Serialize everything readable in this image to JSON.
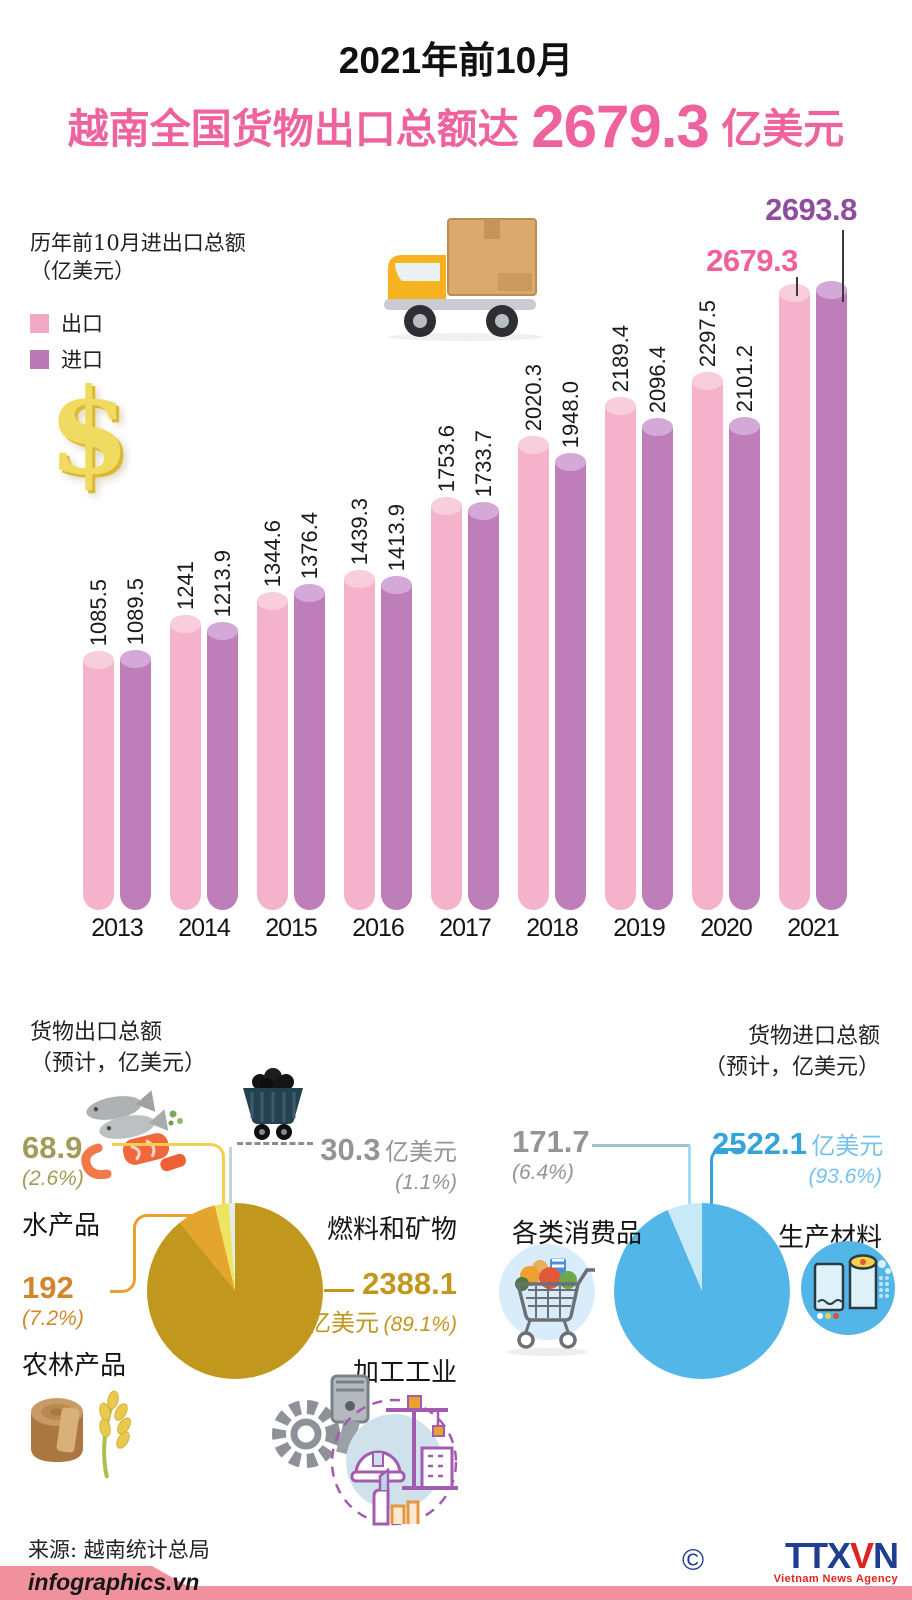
{
  "header": {
    "date_line": "2021年前10月",
    "headline_prefix": "越南全国货物出口总额达",
    "headline_value": "2679.3",
    "headline_suffix": "亿美元"
  },
  "chart_data": [
    {
      "type": "bar",
      "title": "历年前10月进出口总额",
      "unit": "（亿美元）",
      "legend_position": "top-left",
      "categories": [
        "2013",
        "2014",
        "2015",
        "2016",
        "2017",
        "2018",
        "2019",
        "2020",
        "2021"
      ],
      "series": [
        {
          "name": "出口",
          "color": "#F5B3CB",
          "top_color": "#F8CDDC",
          "highlight_color": "#F0609B",
          "values": [
            1085.5,
            1241,
            1344.6,
            1439.3,
            1753.6,
            2020.3,
            2189.4,
            2297.5,
            2679.3
          ],
          "labels": [
            "1085.5",
            "1241",
            "1344.6",
            "1439.3",
            "1753.6",
            "2020.3",
            "2189.4",
            "2297.5",
            "2679.3"
          ]
        },
        {
          "name": "进口",
          "color": "#BE7EB9",
          "top_color": "#D4A9D8",
          "highlight_color": "#8F4DA0",
          "values": [
            1089.5,
            1213.9,
            1376.4,
            1413.9,
            1733.7,
            1948.0,
            2096.4,
            2101.2,
            2693.8
          ],
          "labels": [
            "1089.5",
            "1213.9",
            "1376.4",
            "1413.9",
            "1733.7",
            "1948.0",
            "2096.4",
            "2101.2",
            "2693.8"
          ]
        }
      ],
      "ylim": [
        0,
        2800
      ],
      "grid": false
    },
    {
      "type": "pie",
      "title": "货物出口总额",
      "subtitle": "（预计，亿美元）",
      "slices": [
        {
          "label": "加工工业",
          "value": 2388.1,
          "value_label": "2388.1",
          "unit": "亿美元",
          "pct": 89.1,
          "pct_label": "(89.1%)",
          "color": "#C2971D"
        },
        {
          "label": "农林产品",
          "value": 192,
          "value_label": "192",
          "pct": 7.2,
          "pct_label": "(7.2%)",
          "color": "#E3A52D"
        },
        {
          "label": "水产品",
          "value": 68.9,
          "value_label": "68.9",
          "pct": 2.6,
          "pct_label": "(2.6%)",
          "color": "#EDE464"
        },
        {
          "label": "燃料和矿物",
          "value": 30.3,
          "value_label": "30.3",
          "unit": "亿美元",
          "pct": 1.1,
          "pct_label": "(1.1%)",
          "color": "#E2EEEC"
        }
      ]
    },
    {
      "type": "pie",
      "title": "货物进口总额",
      "subtitle": "（预计，亿美元）",
      "slices": [
        {
          "label": "生产材料",
          "value": 2522.1,
          "value_label": "2522.1",
          "unit": "亿美元",
          "pct": 93.6,
          "pct_label": "(93.6%)",
          "color": "#52B7E8"
        },
        {
          "label": "各类消费品",
          "value": 171.7,
          "value_label": "171.7",
          "pct": 6.4,
          "pct_label": "(6.4%)",
          "color": "#C8E9F8"
        }
      ]
    }
  ],
  "icons": {
    "truck": "delivery-truck-icon",
    "dollar": "dollar-sign-icon",
    "seafood": "seafood-icon",
    "coal_cart": "coal-cart-icon",
    "wood_rice": "wood-and-rice-icon",
    "machinery": "machinery-industry-icon",
    "shopping_cart": "shopping-cart-icon",
    "paper_rolls": "production-materials-icon"
  },
  "footer": {
    "source": "来源: 越南统计总局",
    "site": "infographics.vn",
    "copyright": "©",
    "agency": {
      "p1": "TTX",
      "p2": "V",
      "p3": "N",
      "name": "Vietnam News Agency"
    }
  }
}
